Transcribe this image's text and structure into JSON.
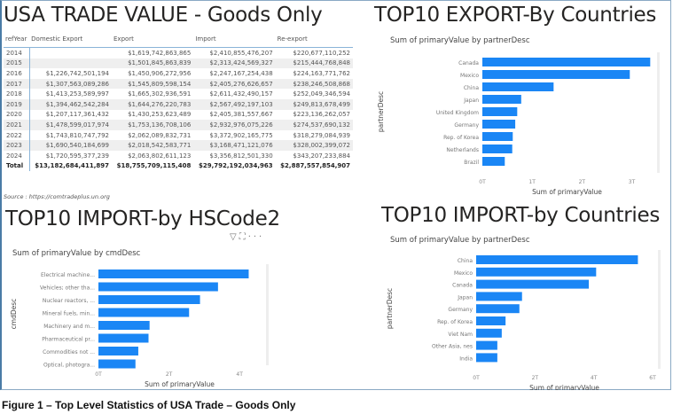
{
  "table_title": "USA TRADE VALUE - Goods Only",
  "table": {
    "headers": [
      "refYear",
      "Domestic Export",
      "Export",
      "Import",
      "Re-export"
    ],
    "rows": [
      [
        "2014",
        "",
        "$1,619,742,863,865",
        "$2,410,855,476,207",
        "$220,677,110,252"
      ],
      [
        "2015",
        "",
        "$1,501,845,863,839",
        "$2,313,424,569,327",
        "$215,444,768,848"
      ],
      [
        "2016",
        "$1,226,742,501,194",
        "$1,450,906,272,956",
        "$2,247,167,254,438",
        "$224,163,771,762"
      ],
      [
        "2017",
        "$1,307,563,089,286",
        "$1,545,809,598,154",
        "$2,405,276,626,657",
        "$238,246,508,868"
      ],
      [
        "2018",
        "$1,413,253,589,997",
        "$1,665,302,936,591",
        "$2,611,432,490,157",
        "$252,049,346,594"
      ],
      [
        "2019",
        "$1,394,462,542,284",
        "$1,644,276,220,783",
        "$2,567,492,197,103",
        "$249,813,678,499"
      ],
      [
        "2020",
        "$1,207,117,361,432",
        "$1,430,253,623,489",
        "$2,405,381,557,667",
        "$223,136,262,057"
      ],
      [
        "2021",
        "$1,478,599,017,974",
        "$1,753,136,708,106",
        "$2,932,976,075,226",
        "$274,537,690,132"
      ],
      [
        "2022",
        "$1,743,810,747,792",
        "$2,062,089,832,731",
        "$3,372,902,165,775",
        "$318,279,084,939"
      ],
      [
        "2023",
        "$1,690,540,184,699",
        "$2,018,542,583,771",
        "$3,168,471,121,076",
        "$328,002,399,072"
      ],
      [
        "2024",
        "$1,720,595,377,239",
        "$2,063,802,611,123",
        "$3,356,812,501,330",
        "$343,207,233,884"
      ]
    ],
    "total": [
      "Total",
      "$13,182,684,411,897",
      "$18,755,709,115,408",
      "$29,792,192,034,963",
      "$2,887,557,854,907"
    ],
    "source": "Source : https://comtradeplus.un.org"
  },
  "caption": "Figure 1 – Top Level Statistics of USA Trade – Goods Only",
  "bar_color": "#1a86f5",
  "chart_data": [
    {
      "type": "bar",
      "orientation": "horizontal",
      "title": "TOP10 EXPORT-By Countries",
      "subtitle": "Sum of primaryValue by partnerDesc",
      "xlabel": "Sum of primaryValue",
      "ylabel": "partnerDesc",
      "xlim": [
        0,
        3.4
      ],
      "xticks": [
        "0T",
        "1T",
        "2T",
        "3T"
      ],
      "xtick_values": [
        0,
        1,
        2,
        3
      ],
      "unit": "T",
      "categories": [
        "Canada",
        "Mexico",
        "China",
        "Japan",
        "United Kingdom",
        "Germany",
        "Rep. of Korea",
        "Netherlands",
        "Brazil"
      ],
      "values": [
        3.37,
        2.96,
        1.43,
        0.78,
        0.7,
        0.66,
        0.61,
        0.6,
        0.45
      ]
    },
    {
      "type": "bar",
      "orientation": "horizontal",
      "title": "TOP10 IMPORT-by HSCode2",
      "subtitle": "Sum of primaryValue by cmdDesc",
      "xlabel": "Sum of primaryValue",
      "ylabel": "cmdDesc",
      "xlim": [
        0,
        4.6
      ],
      "xticks": [
        "0T",
        "2T",
        "4T"
      ],
      "xtick_values": [
        0,
        2,
        4
      ],
      "unit": "T",
      "categories": [
        "Electrical machine...",
        "Vehicles; other tha...",
        "Nuclear reactors, ...",
        "Mineral fuels, min...",
        "Machinery and m...",
        "Pharmaceutical pr...",
        "Commodities not ...",
        "Optical, photogra..."
      ],
      "values": [
        4.26,
        3.39,
        2.88,
        2.57,
        1.45,
        1.42,
        1.13,
        1.05
      ]
    },
    {
      "type": "bar",
      "orientation": "horizontal",
      "title": "TOP10 IMPORT-by Countries",
      "subtitle": "Sum of primaryValue by partnerDesc",
      "xlabel": "Sum of primaryValue",
      "ylabel": "partnerDesc",
      "xlim": [
        0,
        6
      ],
      "xticks": [
        "0T",
        "2T",
        "4T",
        "6T"
      ],
      "xtick_values": [
        0,
        2,
        4,
        6
      ],
      "unit": "T",
      "categories": [
        "China",
        "Mexico",
        "Canada",
        "Japan",
        "Germany",
        "Rep. of Korea",
        "Viet Nam",
        "Other Asia, nes",
        "India"
      ],
      "values": [
        5.5,
        4.08,
        3.83,
        1.56,
        1.47,
        1.0,
        0.87,
        0.72,
        0.72
      ]
    }
  ]
}
